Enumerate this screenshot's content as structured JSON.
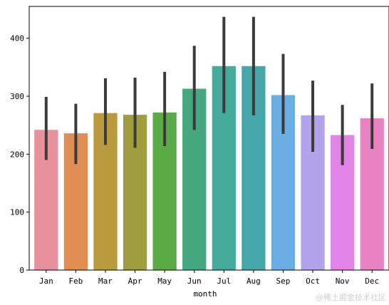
{
  "chart_data": {
    "type": "bar",
    "xlabel": "month",
    "ylabel": "",
    "ylim": [
      0,
      455
    ],
    "yticks": [
      0,
      100,
      200,
      300,
      400
    ],
    "grid": false,
    "categories": [
      "Jan",
      "Feb",
      "Mar",
      "Apr",
      "May",
      "Jun",
      "Jul",
      "Aug",
      "Sep",
      "Oct",
      "Nov",
      "Dec"
    ],
    "values": [
      242,
      236,
      271,
      268,
      272,
      313,
      352,
      352,
      302,
      267,
      233,
      262
    ],
    "ci_low": [
      190,
      183,
      216,
      211,
      214,
      242,
      271,
      267,
      235,
      204,
      181,
      209
    ],
    "ci_high": [
      299,
      287,
      331,
      332,
      342,
      387,
      437,
      437,
      373,
      327,
      285,
      322
    ],
    "colors": [
      "#e8919c",
      "#e08e54",
      "#b99b3e",
      "#a09d3e",
      "#5aaa46",
      "#45a880",
      "#45aa9c",
      "#47a6a9",
      "#6aaee4",
      "#b3a2ec",
      "#e283e8",
      "#e882c3"
    ],
    "errorbar_color": "#3b3b3b"
  },
  "watermark": "@稀土掘金技术社区"
}
